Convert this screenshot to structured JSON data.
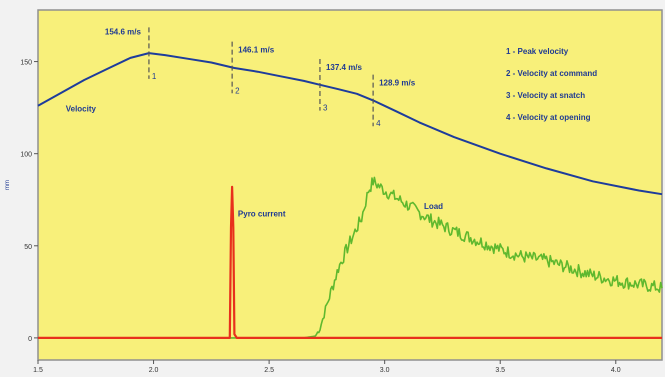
{
  "chart_data": {
    "type": "line",
    "title": "",
    "xlabel": "",
    "ylabel": "mm",
    "xlim": [
      1.5,
      4.2
    ],
    "ylim": [
      -12,
      178
    ],
    "x_ticks": [
      1.5,
      2.0,
      2.5,
      3.0,
      3.5,
      4.0
    ],
    "x_tick_labels": [
      "1.5",
      "2.0",
      "2.5",
      "3.0",
      "3.5",
      "4.0"
    ],
    "y_ticks": [
      0,
      50,
      100,
      150
    ],
    "y_tick_labels": [
      "0",
      "50",
      "100",
      "150"
    ],
    "grid": false,
    "colors": {
      "background": "#F8F07A",
      "frame": "#909090",
      "velocity": "#1E3C9C",
      "load": "#5FB82E",
      "pyro": "#E8301C",
      "annotation": "#1F3A93",
      "marker": "#555555"
    },
    "series": [
      {
        "name": "Velocity",
        "color_key": "velocity",
        "x": [
          1.5,
          1.6,
          1.7,
          1.8,
          1.9,
          1.98,
          2.05,
          2.15,
          2.25,
          2.35,
          2.45,
          2.55,
          2.65,
          2.72,
          2.8,
          2.88,
          2.95,
          3.05,
          3.15,
          3.3,
          3.5,
          3.7,
          3.9,
          4.1,
          4.2
        ],
        "values": [
          126,
          133,
          140,
          146,
          152,
          154.6,
          153.5,
          151.5,
          149.5,
          146.5,
          144.5,
          142,
          139.5,
          137.4,
          135,
          132.5,
          128.9,
          123,
          117,
          109,
          100,
          92,
          85,
          80,
          78
        ]
      },
      {
        "name": "Load",
        "color_key": "load",
        "x": [
          1.5,
          2.0,
          2.5,
          2.65,
          2.7,
          2.72,
          2.75,
          2.8,
          2.85,
          2.9,
          2.93,
          2.95,
          3.0,
          3.05,
          3.1,
          3.2,
          3.3,
          3.4,
          3.5,
          3.6,
          3.7,
          3.8,
          3.9,
          4.0,
          4.1,
          4.2
        ],
        "values": [
          0,
          0,
          0,
          0,
          1,
          5,
          18,
          38,
          52,
          65,
          80,
          85,
          80,
          76,
          72,
          64,
          58,
          53,
          48,
          44,
          42,
          38,
          34,
          31,
          29,
          27
        ]
      },
      {
        "name": "Pyro current",
        "color_key": "pyro",
        "x": [
          1.5,
          2.33,
          2.335,
          2.34,
          2.345,
          2.35,
          2.36,
          4.2
        ],
        "values": [
          0,
          0,
          60,
          82,
          60,
          2,
          0,
          0
        ]
      }
    ],
    "series_labels": [
      "Velocity",
      "Load",
      "Pyro current"
    ],
    "markers": [
      {
        "id": "1",
        "x": 1.98,
        "value_label": "154.6 m/s"
      },
      {
        "id": "2",
        "x": 2.34,
        "value_label": "146.1 m/s"
      },
      {
        "id": "3",
        "x": 2.72,
        "value_label": "137.4 m/s"
      },
      {
        "id": "4",
        "x": 2.95,
        "value_label": "128.9 m/s"
      }
    ],
    "legend": {
      "placement": "top-right",
      "entries": [
        "1 - Peak velocity",
        "2 - Velocity at command",
        "3 - Velocity at snatch",
        "4 - Velocity at opening"
      ]
    }
  }
}
